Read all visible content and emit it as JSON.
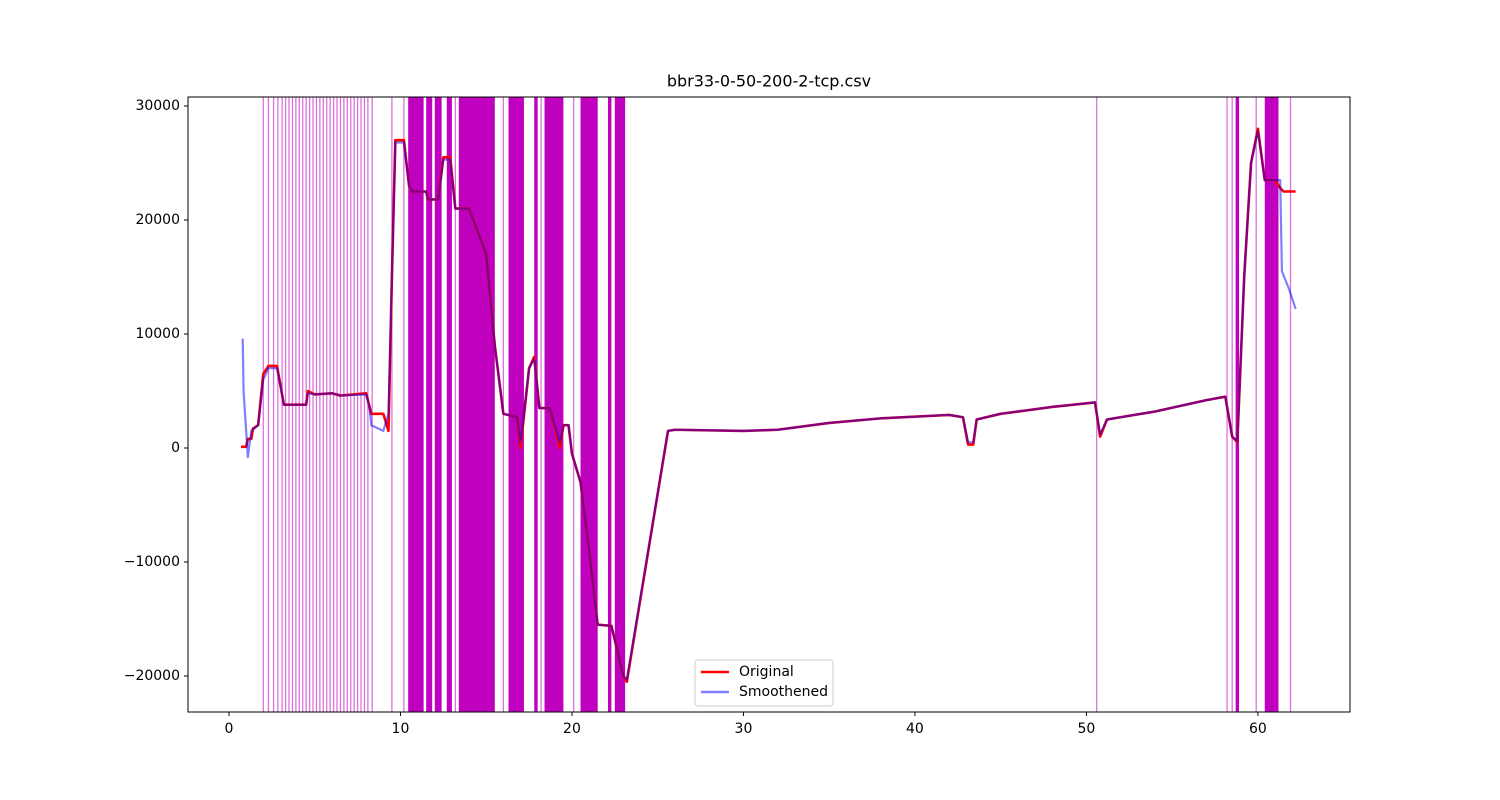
{
  "chart_data": {
    "type": "line",
    "title": "bbr33-0-50-200-2-tcp.csv",
    "xlim": [
      -2.39,
      65.37
    ],
    "ylim": [
      -23158,
      30790
    ],
    "xticks": [
      0,
      10,
      20,
      30,
      40,
      50,
      60
    ],
    "yticks": [
      {
        "value": -20000,
        "label": "−20000"
      },
      {
        "value": -10000,
        "label": "−10000"
      },
      0,
      10000,
      20000,
      30000
    ],
    "legend": "lower center",
    "vlines": {
      "color": "#bf00bf",
      "x": [
        2.0,
        2.3,
        2.6,
        2.85,
        3.1,
        3.3,
        3.5,
        3.7,
        3.9,
        4.1,
        4.3,
        4.5,
        4.7,
        4.9,
        5.1,
        5.3,
        5.5,
        5.7,
        5.9,
        6.1,
        6.3,
        6.5,
        6.7,
        6.9,
        7.1,
        7.3,
        7.5,
        7.7,
        7.9,
        8.1,
        8.35,
        9.5,
        10.2,
        13.2,
        16.0,
        18.2,
        20.1,
        50.6,
        58.2,
        58.5,
        59.9,
        61.9
      ],
      "spans": [
        [
          10.45,
          11.35
        ],
        [
          11.5,
          11.85
        ],
        [
          12.0,
          12.4
        ],
        [
          12.7,
          13.0
        ],
        [
          13.4,
          15.5
        ],
        [
          16.3,
          17.2
        ],
        [
          17.8,
          18.0
        ],
        [
          18.4,
          19.5
        ],
        [
          20.5,
          21.5
        ],
        [
          22.1,
          22.3
        ],
        [
          22.5,
          23.1
        ],
        [
          58.7,
          58.9
        ],
        [
          60.4,
          61.2
        ]
      ]
    },
    "series": [
      {
        "name": "Original",
        "color": "#ff0000",
        "x": [
          0.7,
          1.0,
          1.1,
          1.3,
          1.4,
          1.7,
          2.0,
          2.3,
          2.8,
          3.0,
          3.2,
          4.5,
          4.6,
          5.0,
          6.0,
          6.5,
          8.0,
          8.3,
          9.0,
          9.3,
          9.5,
          9.7,
          10.2,
          10.5,
          10.7,
          11.5,
          11.6,
          12.2,
          12.5,
          12.9,
          13.2,
          14.0,
          14.5,
          15.0,
          15.5,
          16.0,
          16.8,
          17.0,
          17.5,
          17.8,
          18.1,
          18.7,
          19.3,
          19.5,
          19.8,
          20.0,
          20.5,
          21.0,
          21.5,
          22.3,
          23.0,
          23.2,
          25.6,
          26,
          30,
          32,
          35,
          38,
          42,
          42.8,
          43.1,
          43.4,
          43.6,
          45,
          48,
          50.5,
          50.8,
          51.2,
          54,
          57,
          58.1,
          58.5,
          58.8,
          59.2,
          59.6,
          60.0,
          60.4,
          61.0,
          61.3,
          61.5,
          62.2
        ],
        "values": [
          100,
          100,
          800,
          800,
          1700,
          2000,
          6500,
          7200,
          7200,
          5500,
          3800,
          3800,
          5000,
          4700,
          4800,
          4600,
          4800,
          3000,
          3000,
          1500,
          15000,
          27000,
          27000,
          23000,
          22500,
          22500,
          21800,
          21800,
          25500,
          25500,
          21000,
          21000,
          19000,
          17000,
          9000,
          3000,
          2700,
          0,
          7000,
          8000,
          3500,
          3500,
          0,
          2000,
          2000,
          -500,
          -3000,
          -9000,
          -15500,
          -15600,
          -20000,
          -20500,
          1500,
          1600,
          1500,
          1600,
          2200,
          2600,
          2900,
          2700,
          300,
          300,
          2500,
          3000,
          3600,
          4000,
          1000,
          2500,
          3200,
          4200,
          4500,
          1000,
          500,
          15000,
          25000,
          28000,
          23500,
          23500,
          22800,
          22500,
          22500
        ]
      },
      {
        "name": "Smoothened",
        "color": "#0000ff",
        "x": [
          0.8,
          0.85,
          1.1,
          1.3,
          1.7,
          2.0,
          2.3,
          2.8,
          3.0,
          3.2,
          4.5,
          4.6,
          5.0,
          6.0,
          6.5,
          8.0,
          8.2,
          8.3,
          9.0,
          9.3,
          9.5,
          9.7,
          10.2,
          10.5,
          10.7,
          11.5,
          11.6,
          12.2,
          12.5,
          12.9,
          13.2,
          14.0,
          14.5,
          15.0,
          15.5,
          16.0,
          16.8,
          17.0,
          17.5,
          17.8,
          18.1,
          18.7,
          19.3,
          19.5,
          19.8,
          20.0,
          20.5,
          21.0,
          21.5,
          22.3,
          23.0,
          23.2,
          25.6,
          26,
          30,
          32,
          35,
          38,
          42,
          42.8,
          43.1,
          43.4,
          43.6,
          45,
          48,
          50.5,
          50.8,
          51.2,
          54,
          57,
          58.1,
          58.5,
          58.8,
          59.2,
          59.6,
          60.0,
          60.4,
          61.3,
          61.4,
          61.8,
          62.2
        ],
        "values": [
          9600,
          5000,
          -800,
          1500,
          2000,
          6000,
          7000,
          7000,
          5500,
          3800,
          3800,
          4800,
          4700,
          4800,
          4600,
          4700,
          3500,
          2000,
          1500,
          3000,
          15000,
          26800,
          26800,
          23000,
          22500,
          22500,
          21800,
          21800,
          25300,
          25300,
          21000,
          21000,
          19000,
          17000,
          9000,
          3000,
          2700,
          500,
          7000,
          7800,
          3500,
          3500,
          500,
          2000,
          2000,
          -500,
          -3000,
          -9000,
          -15500,
          -15600,
          -20000,
          -20300,
          1500,
          1600,
          1500,
          1600,
          2200,
          2600,
          2900,
          2700,
          500,
          500,
          2500,
          3000,
          3600,
          4000,
          1200,
          2500,
          3200,
          4200,
          4500,
          1000,
          600,
          15000,
          25000,
          27800,
          23500,
          23500,
          15500,
          14000,
          12200
        ]
      }
    ]
  }
}
